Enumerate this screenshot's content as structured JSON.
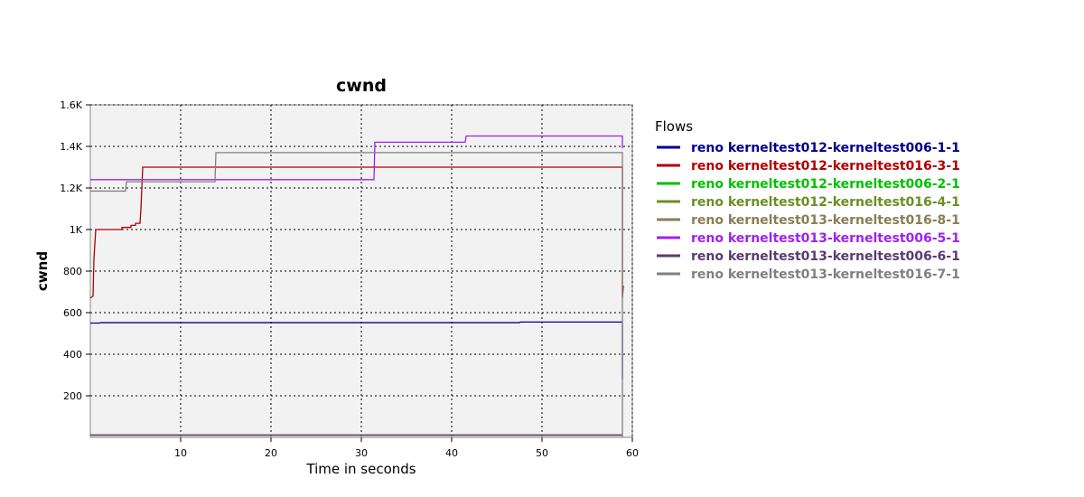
{
  "chart_data": {
    "type": "line",
    "title": "cwnd",
    "xlabel": "Time in seconds",
    "ylabel": "cwnd",
    "xlim": [
      0,
      60
    ],
    "ylim": [
      0,
      1600
    ],
    "x_ticks": [
      10,
      20,
      30,
      40,
      50,
      60
    ],
    "x_tick_labels": [
      "10",
      "20",
      "30",
      "40",
      "50",
      "60"
    ],
    "y_ticks": [
      200,
      400,
      600,
      800,
      1000,
      1200,
      1400,
      1600
    ],
    "y_tick_labels": [
      "200",
      "400",
      "600",
      "800",
      "1K",
      "1.2K",
      "1.4K",
      "1.6K"
    ],
    "grid": true,
    "legend_title": "Flows",
    "legend_position": "right",
    "series": [
      {
        "name": "reno kerneltest012-kerneltest006-1-1",
        "color": "#00008b",
        "points": [
          [
            0,
            550
          ],
          [
            1,
            550
          ],
          [
            1.2,
            552
          ],
          [
            47.5,
            552
          ],
          [
            47.6,
            555
          ],
          [
            58.9,
            555
          ],
          [
            58.9,
            280
          ]
        ]
      },
      {
        "name": "reno kerneltest012-kerneltest016-3-1",
        "color": "#b00000",
        "points": [
          [
            0,
            670
          ],
          [
            0.3,
            680
          ],
          [
            0.4,
            860
          ],
          [
            0.6,
            1000
          ],
          [
            3.5,
            1000
          ],
          [
            3.5,
            1010
          ],
          [
            4.5,
            1010
          ],
          [
            4.5,
            1020
          ],
          [
            5,
            1020
          ],
          [
            5,
            1030
          ],
          [
            5.5,
            1030
          ],
          [
            5.6,
            1100
          ],
          [
            5.8,
            1300
          ],
          [
            58.9,
            1300
          ],
          [
            58.9,
            670
          ],
          [
            59,
            730
          ]
        ]
      },
      {
        "name": "reno kerneltest012-kerneltest006-2-1",
        "color": "#00c000",
        "points": [
          [
            0,
            10
          ],
          [
            58.9,
            10
          ]
        ]
      },
      {
        "name": "reno kerneltest012-kerneltest016-4-1",
        "color": "#6b8e23",
        "points": [
          [
            0,
            10
          ],
          [
            58.9,
            10
          ]
        ]
      },
      {
        "name": "reno kerneltest013-kerneltest016-8-1",
        "color": "#8b7d55",
        "points": [
          [
            0,
            10
          ],
          [
            58.9,
            10
          ]
        ]
      },
      {
        "name": "reno kerneltest013-kerneltest006-5-1",
        "color": "#a020f0",
        "points": [
          [
            0,
            1240
          ],
          [
            31.4,
            1240
          ],
          [
            31.5,
            1420
          ],
          [
            41.5,
            1420
          ],
          [
            41.6,
            1450
          ],
          [
            58.9,
            1450
          ],
          [
            58.9,
            1390
          ]
        ]
      },
      {
        "name": "reno kerneltest013-kerneltest006-6-1",
        "color": "#5b3a70",
        "points": [
          [
            0,
            12
          ],
          [
            58.9,
            12
          ]
        ]
      },
      {
        "name": "reno kerneltest013-kerneltest016-7-1",
        "color": "#808080",
        "points": [
          [
            0,
            1185
          ],
          [
            3.9,
            1185
          ],
          [
            4,
            1230
          ],
          [
            13.8,
            1230
          ],
          [
            13.9,
            1370
          ],
          [
            58.9,
            1370
          ],
          [
            58.9,
            0
          ]
        ]
      }
    ]
  }
}
